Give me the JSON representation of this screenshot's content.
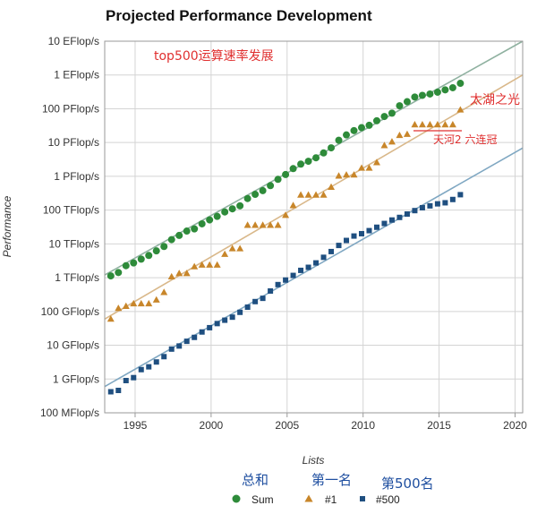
{
  "chart_data": {
    "type": "scatter",
    "title": "Projected Performance Development",
    "xlabel": "Lists",
    "ylabel": "Performance",
    "xlim": [
      1993,
      2020.5
    ],
    "ylim": [
      0.1,
      10000000000
    ],
    "y_scale": "log",
    "x_ticks": [
      "1995",
      "2000",
      "2005",
      "2010",
      "2015",
      "2020"
    ],
    "y_ticks": [
      {
        "value": 10000000000,
        "label": "10 EFlop/s"
      },
      {
        "value": 1000000000,
        "label": "1 EFlop/s"
      },
      {
        "value": 100000000,
        "label": "100 PFlop/s"
      },
      {
        "value": 10000000,
        "label": "10 PFlop/s"
      },
      {
        "value": 1000000,
        "label": "1 PFlop/s"
      },
      {
        "value": 100000,
        "label": "100 TFlop/s"
      },
      {
        "value": 10000,
        "label": "10 TFlop/s"
      },
      {
        "value": 1000,
        "label": "1 TFlop/s"
      },
      {
        "value": 100,
        "label": "100 GFlop/s"
      },
      {
        "value": 10,
        "label": "10 GFlop/s"
      },
      {
        "value": 1,
        "label": "1 GFlop/s"
      },
      {
        "value": 0.1,
        "label": "100 MFlop/s"
      }
    ],
    "grid": true,
    "legend_position": "bottom",
    "series": [
      {
        "name": "Sum",
        "legend_cn": "总和",
        "marker": "circle",
        "color": "#2e8b3a",
        "trend_color": "#8fb1a0",
        "trend": [
          [
            1993.0,
            1200
          ],
          [
            2020.5,
            10000000000
          ]
        ],
        "points": [
          [
            1993.4,
            1130
          ],
          [
            1993.9,
            1420
          ],
          [
            1994.4,
            2260
          ],
          [
            1994.9,
            2730
          ],
          [
            1995.4,
            3540
          ],
          [
            1995.9,
            4540
          ],
          [
            1996.4,
            6220
          ],
          [
            1996.9,
            8380
          ],
          [
            1997.4,
            13400
          ],
          [
            1997.9,
            17800
          ],
          [
            1998.4,
            24000
          ],
          [
            1998.9,
            27800
          ],
          [
            1999.4,
            39200
          ],
          [
            1999.9,
            51300
          ],
          [
            2000.4,
            65100
          ],
          [
            2000.9,
            88100
          ],
          [
            2001.4,
            109000
          ],
          [
            2001.9,
            134000
          ],
          [
            2002.4,
            220000
          ],
          [
            2002.9,
            293000
          ],
          [
            2003.4,
            377000
          ],
          [
            2003.9,
            530000
          ],
          [
            2004.4,
            813000
          ],
          [
            2004.9,
            1130000
          ],
          [
            2005.4,
            1690000
          ],
          [
            2005.9,
            2300000
          ],
          [
            2006.4,
            2790000
          ],
          [
            2006.9,
            3540000
          ],
          [
            2007.4,
            4920000
          ],
          [
            2007.9,
            6970000
          ],
          [
            2008.4,
            11700000
          ],
          [
            2008.9,
            16800000
          ],
          [
            2009.4,
            22600000
          ],
          [
            2009.9,
            27600000
          ],
          [
            2010.4,
            32400000
          ],
          [
            2010.9,
            44200000
          ],
          [
            2011.4,
            59000000
          ],
          [
            2011.9,
            74100000
          ],
          [
            2012.4,
            123000000
          ],
          [
            2012.9,
            162000000
          ],
          [
            2013.4,
            223000000
          ],
          [
            2013.9,
            250000000
          ],
          [
            2014.4,
            274000000
          ],
          [
            2014.9,
            309000000
          ],
          [
            2015.4,
            363000000
          ],
          [
            2015.9,
            420000000
          ],
          [
            2016.4,
            567000000
          ]
        ]
      },
      {
        "name": "#1",
        "legend_cn": "第一名",
        "marker": "triangle",
        "color": "#c8862a",
        "trend_color": "#d9b88a",
        "trend": [
          [
            1993.0,
            59.7
          ],
          [
            2020.5,
            1000000000
          ]
        ],
        "points": [
          [
            1993.4,
            59.7
          ],
          [
            1993.9,
            124
          ],
          [
            1994.4,
            143
          ],
          [
            1994.9,
            170
          ],
          [
            1995.4,
            170
          ],
          [
            1995.9,
            170
          ],
          [
            1996.4,
            220
          ],
          [
            1996.9,
            368
          ],
          [
            1997.4,
            1068
          ],
          [
            1997.9,
            1338
          ],
          [
            1998.4,
            1338
          ],
          [
            1998.9,
            2121
          ],
          [
            1999.4,
            2379
          ],
          [
            1999.9,
            2379
          ],
          [
            2000.4,
            2379
          ],
          [
            2000.9,
            4938
          ],
          [
            2001.4,
            7226
          ],
          [
            2001.9,
            7226
          ],
          [
            2002.4,
            35860
          ],
          [
            2002.9,
            35860
          ],
          [
            2003.4,
            35860
          ],
          [
            2003.9,
            35860
          ],
          [
            2004.4,
            35860
          ],
          [
            2004.9,
            70720
          ],
          [
            2005.4,
            136800
          ],
          [
            2005.9,
            280600
          ],
          [
            2006.4,
            280600
          ],
          [
            2006.9,
            280600
          ],
          [
            2007.4,
            280600
          ],
          [
            2007.9,
            478200
          ],
          [
            2008.4,
            1026000
          ],
          [
            2008.9,
            1105000
          ],
          [
            2009.4,
            1105000
          ],
          [
            2009.9,
            1759000
          ],
          [
            2010.4,
            1759000
          ],
          [
            2010.9,
            2566000
          ],
          [
            2011.4,
            8162000
          ],
          [
            2011.9,
            10510000
          ],
          [
            2012.4,
            16320000
          ],
          [
            2012.9,
            17590000
          ],
          [
            2013.4,
            33860000
          ],
          [
            2013.9,
            33860000
          ],
          [
            2014.4,
            33860000
          ],
          [
            2014.9,
            33860000
          ],
          [
            2015.4,
            33860000
          ],
          [
            2015.9,
            33860000
          ],
          [
            2016.4,
            93010000
          ]
        ]
      },
      {
        "name": "#500",
        "legend_cn": "第500名",
        "marker": "square",
        "color": "#1f4f80",
        "trend_color": "#7fa7c2",
        "trend": [
          [
            1993.0,
            0.6
          ],
          [
            2020.5,
            6900000
          ]
        ],
        "points": [
          [
            1993.4,
            0.42
          ],
          [
            1993.9,
            0.46
          ],
          [
            1994.4,
            0.9
          ],
          [
            1994.9,
            1.1
          ],
          [
            1995.4,
            1.9
          ],
          [
            1995.9,
            2.3
          ],
          [
            1996.4,
            3.2
          ],
          [
            1996.9,
            4.6
          ],
          [
            1997.4,
            7.7
          ],
          [
            1997.9,
            9.5
          ],
          [
            1998.4,
            13.1
          ],
          [
            1998.9,
            17.1
          ],
          [
            1999.4,
            24.7
          ],
          [
            1999.9,
            33.1
          ],
          [
            2000.4,
            43.8
          ],
          [
            2000.9,
            55.1
          ],
          [
            2001.4,
            67.8
          ],
          [
            2001.9,
            94.3
          ],
          [
            2002.4,
            134
          ],
          [
            2002.9,
            196
          ],
          [
            2003.4,
            245
          ],
          [
            2003.9,
            403
          ],
          [
            2004.4,
            624
          ],
          [
            2004.9,
            851
          ],
          [
            2005.4,
            1166
          ],
          [
            2005.9,
            1646
          ],
          [
            2006.4,
            2026
          ],
          [
            2006.9,
            2737
          ],
          [
            2007.4,
            4005
          ],
          [
            2007.9,
            5929
          ],
          [
            2008.4,
            9000
          ],
          [
            2008.9,
            12640
          ],
          [
            2009.4,
            17090
          ],
          [
            2009.9,
            20050
          ],
          [
            2010.4,
            24670
          ],
          [
            2010.9,
            31120
          ],
          [
            2011.4,
            40190
          ],
          [
            2011.9,
            50940
          ],
          [
            2012.4,
            60820
          ],
          [
            2012.9,
            76500
          ],
          [
            2013.4,
            96620
          ],
          [
            2013.9,
            117800
          ],
          [
            2014.4,
            133700
          ],
          [
            2014.9,
            153400
          ],
          [
            2015.4,
            164800
          ],
          [
            2015.9,
            206300
          ],
          [
            2016.4,
            286100
          ]
        ]
      }
    ],
    "annotations": {
      "top_note": "top500运算速率发展",
      "taihu": "太湖之光",
      "tianhe": "天河2 六连冠"
    }
  }
}
